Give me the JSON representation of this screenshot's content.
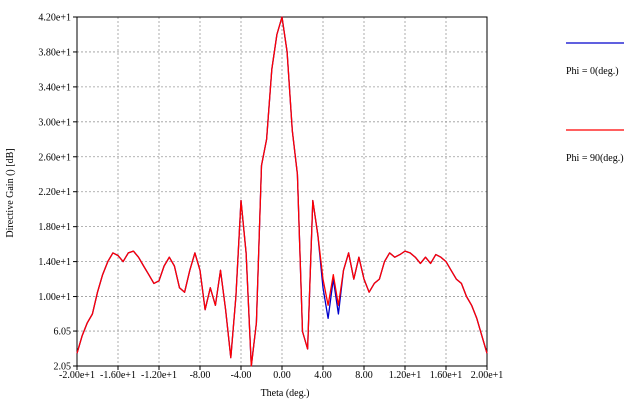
{
  "chart_data": {
    "type": "line",
    "xlabel": "Theta (deg.)",
    "ylabel": "Directive Gain () [dB]",
    "xlim": [
      -20,
      20
    ],
    "ylim": [
      2.05,
      42.0
    ],
    "x_ticks": [
      -20,
      -16,
      -12,
      -8,
      -4,
      0,
      4,
      8,
      12,
      16,
      20
    ],
    "x_tick_labels": [
      "-2.00e+1",
      "-1.60e+1",
      "-1.20e+1",
      "-8.00",
      "-4.00",
      "0.00",
      "4.00",
      "8.00",
      "1.20e+1",
      "1.60e+1",
      "2.00e+1"
    ],
    "y_ticks": [
      2.05,
      6.05,
      10.0,
      14.0,
      18.0,
      22.0,
      26.0,
      30.0,
      34.0,
      38.0,
      42.0
    ],
    "y_tick_labels": [
      "2.05",
      "6.05",
      "1.00e+1",
      "1.40e+1",
      "1.80e+1",
      "2.20e+1",
      "2.60e+1",
      "3.00e+1",
      "3.40e+1",
      "3.80e+1",
      "4.20e+1"
    ],
    "grid": true,
    "legend_position": "right",
    "series": [
      {
        "name": "Phi = 0(deg.)",
        "color": "#0000cc",
        "x": [
          -20,
          -19.5,
          -19,
          -18.5,
          -18,
          -17.5,
          -17,
          -16.5,
          -16,
          -15.5,
          -15,
          -14.5,
          -14,
          -13.5,
          -13,
          -12.5,
          -12,
          -11.5,
          -11,
          -10.5,
          -10,
          -9.5,
          -9,
          -8.5,
          -8,
          -7.5,
          -7,
          -6.5,
          -6,
          -5.5,
          -5,
          -4.5,
          -4,
          -3.5,
          -3,
          -2.5,
          -2,
          -1.5,
          -1,
          -0.5,
          0,
          0.5,
          1,
          1.5,
          2,
          2.5,
          3,
          3.5,
          4,
          4.5,
          5,
          5.5,
          6,
          6.5,
          7,
          7.5,
          8,
          8.5,
          9,
          9.5,
          10,
          10.5,
          11,
          11.5,
          12,
          12.5,
          13,
          13.5,
          14,
          14.5,
          15,
          15.5,
          16,
          16.5,
          17,
          17.5,
          18,
          18.5,
          19,
          19.5,
          20
        ],
        "y": [
          3.5,
          5.5,
          7.0,
          8.0,
          10.5,
          12.5,
          14.0,
          15.0,
          14.7,
          14.0,
          15.0,
          15.2,
          14.5,
          13.5,
          12.5,
          11.5,
          11.8,
          13.5,
          14.5,
          13.5,
          11.0,
          10.5,
          13.0,
          15.0,
          13.0,
          8.5,
          11.0,
          9.0,
          13.0,
          8.5,
          3.0,
          10.0,
          21.0,
          15.0,
          2.0,
          7.0,
          25.0,
          28.0,
          36.0,
          40.0,
          42.0,
          38.0,
          29.0,
          24.0,
          6.0,
          4.0,
          21.0,
          17.0,
          11.0,
          7.5,
          12.0,
          8.0,
          13.0,
          15.0,
          12.0,
          14.5,
          12.0,
          10.5,
          11.5,
          12.0,
          14.0,
          15.0,
          14.5,
          14.8,
          15.2,
          15.0,
          14.5,
          13.8,
          14.5,
          13.8,
          14.8,
          14.5,
          14.0,
          13.0,
          12.0,
          11.5,
          10.0,
          9.0,
          7.5,
          5.5,
          3.5
        ]
      },
      {
        "name": "Phi = 90(deg.)",
        "color": "#ff0000",
        "x": [
          -20,
          -19.5,
          -19,
          -18.5,
          -18,
          -17.5,
          -17,
          -16.5,
          -16,
          -15.5,
          -15,
          -14.5,
          -14,
          -13.5,
          -13,
          -12.5,
          -12,
          -11.5,
          -11,
          -10.5,
          -10,
          -9.5,
          -9,
          -8.5,
          -8,
          -7.5,
          -7,
          -6.5,
          -6,
          -5.5,
          -5,
          -4.5,
          -4,
          -3.5,
          -3,
          -2.5,
          -2,
          -1.5,
          -1,
          -0.5,
          0,
          0.5,
          1,
          1.5,
          2,
          2.5,
          3,
          3.5,
          4,
          4.5,
          5,
          5.5,
          6,
          6.5,
          7,
          7.5,
          8,
          8.5,
          9,
          9.5,
          10,
          10.5,
          11,
          11.5,
          12,
          12.5,
          13,
          13.5,
          14,
          14.5,
          15,
          15.5,
          16,
          16.5,
          17,
          17.5,
          18,
          18.5,
          19,
          19.5,
          20
        ],
        "y": [
          3.5,
          5.5,
          7.0,
          8.0,
          10.5,
          12.5,
          14.0,
          15.0,
          14.7,
          14.0,
          15.0,
          15.2,
          14.5,
          13.5,
          12.5,
          11.5,
          11.8,
          13.5,
          14.5,
          13.5,
          11.0,
          10.5,
          13.0,
          15.0,
          13.0,
          8.5,
          11.0,
          9.0,
          13.0,
          8.5,
          3.0,
          10.0,
          21.0,
          15.0,
          2.0,
          7.0,
          25.0,
          28.0,
          36.0,
          40.0,
          42.0,
          38.0,
          29.0,
          24.0,
          6.0,
          4.0,
          21.0,
          17.0,
          12.0,
          9.0,
          12.5,
          9.0,
          13.0,
          15.0,
          12.0,
          14.5,
          12.0,
          10.5,
          11.5,
          12.0,
          14.0,
          15.0,
          14.5,
          14.8,
          15.2,
          15.0,
          14.5,
          13.8,
          14.5,
          13.8,
          14.8,
          14.5,
          14.0,
          13.0,
          12.0,
          11.5,
          10.0,
          9.0,
          7.5,
          5.5,
          3.5
        ]
      }
    ]
  }
}
